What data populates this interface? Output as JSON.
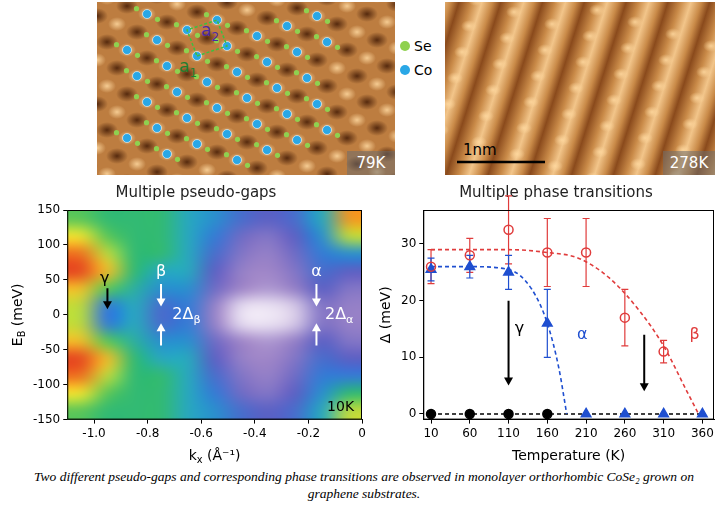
{
  "images": [
    {
      "label": "79K",
      "legend": [
        {
          "text": "Se",
          "color": "#8fd14f"
        },
        {
          "text": "Co",
          "color": "#2aa7e6"
        }
      ],
      "vectors": [
        {
          "text": "a",
          "sub": "1"
        },
        {
          "text": "a",
          "sub": "2"
        }
      ]
    },
    {
      "label": "278K",
      "scale_bar": "1nm"
    }
  ],
  "chart_data": [
    {
      "type": "heatmap",
      "title": "Multiple pseudo-gaps",
      "xlabel": {
        "text": "k",
        "sub": "x",
        "after": " (Å⁻¹)"
      },
      "ylabel": {
        "text": "E",
        "sub": "B",
        "after": " (meV)"
      },
      "xlim": [
        -1.1,
        0
      ],
      "ylim": [
        -150,
        150
      ],
      "xticks": [
        {
          "value": -1,
          "label": "-1.0"
        },
        -0.8,
        -0.6,
        -0.4,
        -0.2,
        0
      ],
      "yticks": [
        -150,
        -100,
        -50,
        0,
        50,
        100,
        150
      ],
      "grid": false,
      "x": [
        -1.05,
        -0.95,
        -0.85,
        -0.75,
        -0.65,
        -0.55,
        -0.45,
        -0.35,
        -0.25,
        -0.15,
        -0.05
      ],
      "y": [
        137.5,
        112.5,
        87.5,
        62.5,
        37.5,
        12.5,
        -12.5,
        -37.5,
        -62.5,
        -87.5,
        -112.5,
        -137.5
      ],
      "cells": [
        [
          0.6,
          0.55,
          0.55,
          0.55,
          0.5,
          0.45,
          0.35,
          0.3,
          0.35,
          0.5,
          0.85
        ],
        [
          0.75,
          0.6,
          0.55,
          0.55,
          0.5,
          0.4,
          0.25,
          0.2,
          0.3,
          0.45,
          0.7
        ],
        [
          0.9,
          0.7,
          0.55,
          0.55,
          0.5,
          0.35,
          0.2,
          0.15,
          0.25,
          0.4,
          0.45
        ],
        [
          0.95,
          0.8,
          0.55,
          0.5,
          0.5,
          0.3,
          0.15,
          0.12,
          0.2,
          0.35,
          0.3
        ],
        [
          0.8,
          0.6,
          0.52,
          0.45,
          0.45,
          0.25,
          0.12,
          0.1,
          0.15,
          0.3,
          0.2
        ],
        [
          0.7,
          0.4,
          0.5,
          0.35,
          0.4,
          0.15,
          0.03,
          0.02,
          0.05,
          0.2,
          0.15
        ],
        [
          0.7,
          0.4,
          0.5,
          0.35,
          0.4,
          0.15,
          0.03,
          0.02,
          0.05,
          0.2,
          0.15
        ],
        [
          0.8,
          0.6,
          0.52,
          0.45,
          0.45,
          0.25,
          0.12,
          0.1,
          0.15,
          0.3,
          0.2
        ],
        [
          0.95,
          0.8,
          0.55,
          0.5,
          0.5,
          0.3,
          0.15,
          0.12,
          0.2,
          0.35,
          0.3
        ],
        [
          0.9,
          0.7,
          0.55,
          0.55,
          0.5,
          0.35,
          0.2,
          0.15,
          0.25,
          0.4,
          0.4
        ],
        [
          0.75,
          0.6,
          0.55,
          0.55,
          0.5,
          0.4,
          0.25,
          0.2,
          0.3,
          0.45,
          0.55
        ],
        [
          0.6,
          0.55,
          0.55,
          0.55,
          0.5,
          0.45,
          0.35,
          0.3,
          0.35,
          0.5,
          0.7
        ]
      ],
      "annotations": [
        {
          "text": "γ",
          "x": -0.96,
          "y": 52,
          "color": "#000000"
        },
        {
          "text": "β",
          "x": -0.75,
          "y": 62,
          "color": "#ffffff"
        },
        {
          "text": "α",
          "x": -0.17,
          "y": 62,
          "color": "#ffffff"
        },
        {
          "text": "2Δ",
          "sub": "β",
          "x": -0.655,
          "y": 0,
          "color": "#ffffff"
        },
        {
          "text": "2Δ",
          "sub": "α",
          "x": -0.085,
          "y": 0,
          "color": "#ffffff"
        },
        {
          "text": "10K",
          "x": -0.08,
          "y": -132,
          "color": "#000000"
        }
      ],
      "arrows": [
        {
          "x": -0.95,
          "from": 38,
          "to": 8,
          "color": "#000000"
        },
        {
          "x": -0.75,
          "from": 44,
          "to": 12,
          "color": "#ffffff"
        },
        {
          "x": -0.75,
          "from": -44,
          "to": -12,
          "color": "#ffffff"
        },
        {
          "x": -0.17,
          "from": 44,
          "to": 12,
          "color": "#ffffff"
        },
        {
          "x": -0.17,
          "from": -44,
          "to": -12,
          "color": "#ffffff"
        }
      ]
    },
    {
      "type": "line",
      "title": "Multiple phase transitions",
      "xlabel": "Temperature (K)",
      "ylabel": "Δ (meV)",
      "xlim": [
        0,
        375
      ],
      "ylim": [
        -1,
        36
      ],
      "xticks": [
        10,
        60,
        110,
        160,
        210,
        260,
        310,
        360
      ],
      "yticks": [
        0,
        10,
        20,
        30
      ],
      "grid": false,
      "series": [
        {
          "color": "#e03c3c",
          "marker": "circle_open",
          "line_style": "none",
          "x": [
            10,
            60,
            110,
            160,
            210,
            260,
            310
          ],
          "values": [
            26,
            28,
            32.5,
            28.5,
            28.5,
            17,
            11
          ],
          "errors": [
            3,
            3,
            6,
            6,
            6,
            5,
            2
          ]
        },
        {
          "color": "#1f4fd0",
          "marker": "triangle",
          "line_style": "none",
          "x": [
            10,
            60,
            110,
            160,
            210,
            260,
            310,
            360
          ],
          "values": [
            25.5,
            26,
            25,
            16,
            0,
            0,
            0,
            0
          ],
          "errors": [
            2,
            2,
            3,
            6,
            0,
            0,
            0,
            0
          ]
        },
        {
          "color": "#000000",
          "marker": "circle",
          "line_style": "none",
          "x": [
            10,
            60,
            110,
            160
          ],
          "values": [
            0,
            0,
            0,
            0
          ]
        },
        {
          "color": "#e03c3c",
          "marker": "none",
          "line_style": "dashed",
          "x": [
            10,
            60,
            110,
            160,
            200,
            240,
            280,
            310,
            340,
            355
          ],
          "values": [
            29,
            29,
            29,
            28.5,
            27.5,
            24,
            18,
            12,
            4,
            0
          ]
        },
        {
          "color": "#1f4fd0",
          "marker": "none",
          "line_style": "dashed",
          "x": [
            10,
            60,
            110,
            140,
            160,
            175,
            185
          ],
          "values": [
            26,
            26,
            25.5,
            22,
            16,
            8,
            0
          ]
        },
        {
          "color": "#000000",
          "marker": "none",
          "line_style": "dashed",
          "x": [
            10,
            360
          ],
          "values": [
            0,
            0
          ]
        }
      ],
      "annotations": [
        {
          "text": "γ",
          "x": 124,
          "y": 15,
          "color": "#000000"
        },
        {
          "text": "α",
          "x": 205,
          "y": 14,
          "color": "#1f4fd0"
        },
        {
          "text": "β",
          "x": 350,
          "y": 14,
          "color": "#e03c3c"
        }
      ],
      "arrows": [
        {
          "x": 110,
          "from": 20,
          "to": 5,
          "color": "#000000"
        },
        {
          "x": 285,
          "from": 14,
          "to": 4,
          "color": "#000000"
        }
      ]
    }
  ],
  "caption": "Two different pseudo-gaps and corresponding phase transitions are observed in monolayer orthorhombic CoSe₂ grown on graphene substrates."
}
